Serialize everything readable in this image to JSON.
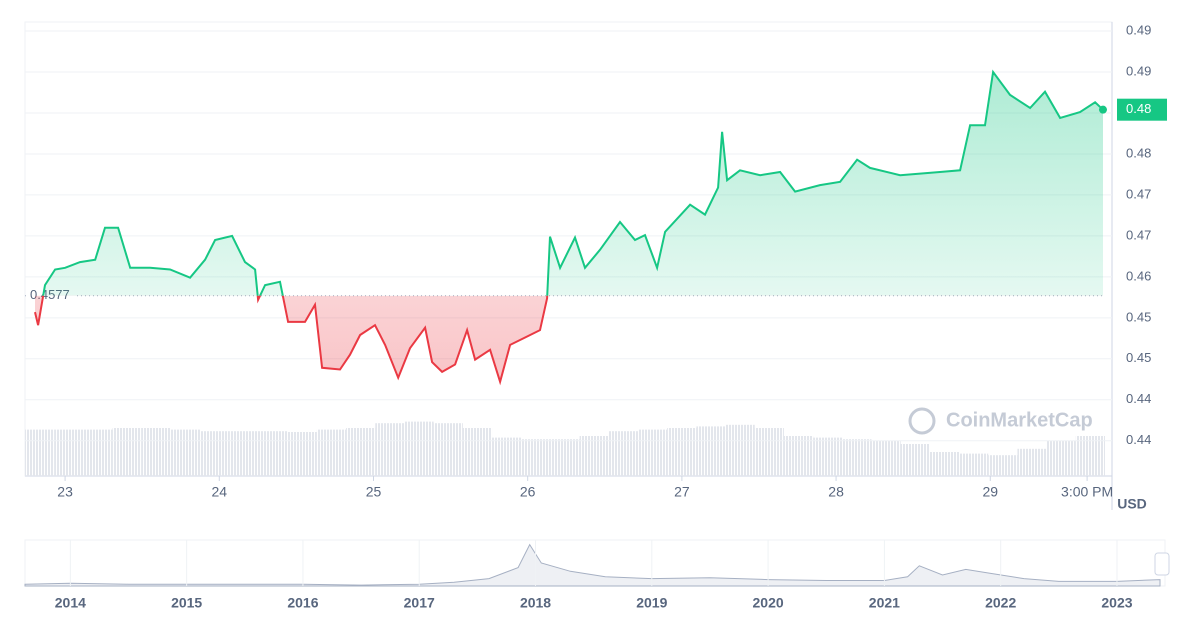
{
  "chart_data": {
    "type": "line",
    "x": [
      22.805,
      22.825,
      22.87,
      22.935,
      23.0,
      23.097,
      23.195,
      23.259,
      23.344,
      23.422,
      23.551,
      23.681,
      23.811,
      23.908,
      23.973,
      24.083,
      24.167,
      24.232,
      24.252,
      24.297,
      24.394,
      24.446,
      24.556,
      24.621,
      24.667,
      24.783,
      24.848,
      24.913,
      25.01,
      25.075,
      25.16,
      25.237,
      25.335,
      25.38,
      25.445,
      25.529,
      25.607,
      25.659,
      25.756,
      25.821,
      25.886,
      25.983,
      26.08,
      26.126,
      26.145,
      26.21,
      26.307,
      26.372,
      26.469,
      26.599,
      26.696,
      26.761,
      26.839,
      26.891,
      27.053,
      27.15,
      27.235,
      27.261,
      27.293,
      27.377,
      27.507,
      27.637,
      27.734,
      27.896,
      28.026,
      28.136,
      28.22,
      28.415,
      28.674,
      28.804,
      28.869,
      28.966,
      29.018,
      29.128,
      29.258,
      29.355,
      29.453,
      29.582,
      29.68,
      29.731
    ],
    "series": [
      {
        "color": "#16c784",
        "down_color": "#ea3943",
        "values": [
          0.4557,
          0.4541,
          0.459,
          0.4609,
          0.4611,
          0.4618,
          0.4621,
          0.466,
          0.466,
          0.4611,
          0.4611,
          0.4609,
          0.4599,
          0.4621,
          0.4645,
          0.465,
          0.4618,
          0.4609,
          0.4572,
          0.459,
          0.4594,
          0.4545,
          0.4545,
          0.4566,
          0.4489,
          0.4487,
          0.4505,
          0.4529,
          0.4541,
          0.4517,
          0.4477,
          0.4513,
          0.4538,
          0.4496,
          0.4484,
          0.4493,
          0.4535,
          0.4499,
          0.4511,
          0.4472,
          0.4517,
          0.4526,
          0.4535,
          0.4574,
          0.4649,
          0.4611,
          0.4648,
          0.4611,
          0.4633,
          0.4667,
          0.4645,
          0.4651,
          0.4611,
          0.4655,
          0.4688,
          0.4676,
          0.4709,
          0.4777,
          0.4718,
          0.473,
          0.4724,
          0.4728,
          0.4704,
          0.4712,
          0.4716,
          0.4743,
          0.4733,
          0.4724,
          0.4728,
          0.473,
          0.4785,
          0.4785,
          0.485,
          0.4822,
          0.4806,
          0.4826,
          0.4794,
          0.4801,
          0.4813,
          0.4804
        ]
      }
    ],
    "xlim": [
      22.74,
      29.744
    ],
    "xticks": [
      23,
      24,
      25,
      26,
      27,
      28,
      29,
      {
        "value": 29.628,
        "label": "3:00 PM"
      }
    ],
    "ylim": [
      0.4357,
      0.4911
    ],
    "yticks": [
      0.49,
      {
        "value": 0.485,
        "label": "0.49"
      },
      0.48,
      {
        "value": 0.475,
        "label": "0.48"
      },
      0.47,
      {
        "value": 0.465,
        "label": "0.47"
      },
      0.46,
      {
        "value": 0.455,
        "label": "0.45"
      },
      0.45,
      {
        "value": 0.445,
        "label": "0.44"
      },
      0.44
    ],
    "grid": true,
    "reference": {
      "value": 0.4577,
      "label": "0.4577"
    },
    "current_price": {
      "value": 0.4804,
      "label": "0.48"
    },
    "unit": "USD",
    "watermark": "CoinMarketCap",
    "volume": {
      "color": "#e6e8ee",
      "ylim": [
        0,
        100
      ],
      "values": [
        58,
        58,
        58,
        60,
        60,
        58,
        56,
        56,
        56,
        55,
        58,
        60,
        66,
        68,
        66,
        60,
        48,
        46,
        46,
        50,
        56,
        58,
        60,
        62,
        64,
        60,
        50,
        48,
        46,
        44,
        40,
        30,
        28,
        26,
        34,
        44,
        50
      ]
    },
    "overview": {
      "x": [
        2013.61,
        2014,
        2014.5,
        2015,
        2015.5,
        2016,
        2016.5,
        2017,
        2017.3,
        2017.6,
        2017.85,
        2017.95,
        2018.05,
        2018.3,
        2018.6,
        2019,
        2019.5,
        2020,
        2020.5,
        2021,
        2021.2,
        2021.3,
        2021.5,
        2021.7,
        2021.9,
        2022.2,
        2022.5,
        2023,
        2023.37
      ],
      "values": [
        2,
        3,
        2,
        2,
        2,
        2,
        1,
        2,
        4,
        8,
        20,
        45,
        25,
        16,
        10,
        8,
        9,
        7,
        6,
        6,
        10,
        22,
        12,
        18,
        14,
        8,
        5,
        5,
        7
      ],
      "ylim": [
        0,
        50
      ],
      "xlim": [
        2013.61,
        2023.37
      ],
      "xticks": [
        2014,
        2015,
        2016,
        2017,
        2018,
        2019,
        2020,
        2021,
        2022,
        2023
      ]
    }
  }
}
